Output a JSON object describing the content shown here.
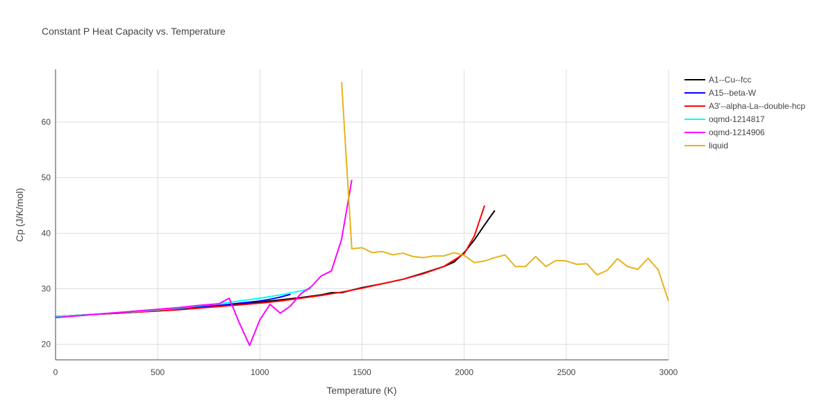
{
  "chart_data": {
    "type": "line",
    "title": "Constant P Heat Capacity vs. Temperature",
    "xlabel": "Temperature (K)",
    "ylabel": "Cp (J/K/mol)",
    "xlim": [
      0,
      3000
    ],
    "ylim": [
      17.2,
      69.5
    ],
    "xticks": [
      0,
      500,
      1000,
      1500,
      2000,
      2500,
      3000
    ],
    "xtick_labels": [
      "0",
      "500",
      "1000",
      "1500",
      "2000",
      "2500",
      "3000"
    ],
    "yticks": [
      20,
      30,
      40,
      50,
      60
    ],
    "ytick_labels": [
      "20",
      "30",
      "40",
      "50",
      "60"
    ],
    "grid": true,
    "legend_position": "top-right",
    "series": [
      {
        "name": "A1--Cu--fcc",
        "color": "#000000",
        "x": [
          0,
          100,
          200,
          300,
          400,
          500,
          600,
          700,
          800,
          900,
          1000,
          1100,
          1200,
          1300,
          1350,
          1400,
          1500,
          1600,
          1700,
          1800,
          1900,
          1950,
          2000,
          2050,
          2100,
          2150
        ],
        "y": [
          25.0,
          25.2,
          25.4,
          25.6,
          25.8,
          26.0,
          26.3,
          26.6,
          26.9,
          27.2,
          27.6,
          28.0,
          28.4,
          28.9,
          29.3,
          29.3,
          30.2,
          30.9,
          31.7,
          32.8,
          34.0,
          34.8,
          36.5,
          38.8,
          41.5,
          44.1
        ]
      },
      {
        "name": "A15--beta-W",
        "color": "#0000ff",
        "x": [
          0,
          100,
          200,
          300,
          400,
          500,
          600,
          700,
          800,
          900,
          1000,
          1050,
          1100,
          1150
        ],
        "y": [
          25.0,
          25.2,
          25.4,
          25.6,
          25.8,
          26.1,
          26.4,
          26.7,
          27.0,
          27.4,
          27.8,
          28.1,
          28.5,
          29.0
        ]
      },
      {
        "name": "A3'--alpha-La--double-hcp",
        "color": "#ff0000",
        "x": [
          0,
          100,
          200,
          300,
          400,
          500,
          600,
          700,
          800,
          900,
          1000,
          1100,
          1200,
          1300,
          1400,
          1500,
          1600,
          1700,
          1800,
          1900,
          2000,
          2050,
          2100
        ],
        "y": [
          25.0,
          25.2,
          25.4,
          25.6,
          25.8,
          26.0,
          26.2,
          26.5,
          26.8,
          27.1,
          27.4,
          27.8,
          28.3,
          28.8,
          29.4,
          30.1,
          30.9,
          31.7,
          32.7,
          34.0,
          36.3,
          39.5,
          45.0
        ]
      },
      {
        "name": "oqmd-1214817",
        "color": "#00ffff",
        "x": [
          0,
          100,
          200,
          300,
          400,
          500,
          600,
          700,
          800,
          900,
          1000,
          1100,
          1200,
          1250
        ],
        "y": [
          25.0,
          25.2,
          25.4,
          25.7,
          25.9,
          26.2,
          26.5,
          26.9,
          27.3,
          27.8,
          28.3,
          28.9,
          29.6,
          30.0
        ]
      },
      {
        "name": "oqmd-1214906",
        "color": "#ff00ff",
        "x": [
          0,
          100,
          200,
          300,
          400,
          500,
          600,
          700,
          800,
          850,
          900,
          950,
          1000,
          1050,
          1100,
          1150,
          1200,
          1250,
          1300,
          1350,
          1400,
          1450
        ],
        "y": [
          24.8,
          25.1,
          25.4,
          25.7,
          26.0,
          26.3,
          26.6,
          27.0,
          27.3,
          28.3,
          23.8,
          19.8,
          24.4,
          27.2,
          25.6,
          26.9,
          29.1,
          30.3,
          32.3,
          33.2,
          38.9,
          49.6
        ]
      },
      {
        "name": "liquid",
        "color": "#e6b31a",
        "x": [
          1400,
          1450,
          1500,
          1550,
          1600,
          1650,
          1700,
          1750,
          1800,
          1850,
          1900,
          1950,
          2000,
          2050,
          2100,
          2150,
          2200,
          2250,
          2300,
          2350,
          2400,
          2450,
          2500,
          2550,
          2600,
          2650,
          2700,
          2750,
          2800,
          2850,
          2900,
          2950,
          3000
        ],
        "y": [
          67.2,
          37.2,
          37.4,
          36.5,
          36.7,
          36.1,
          36.4,
          35.8,
          35.6,
          35.9,
          35.9,
          36.5,
          36.0,
          34.7,
          35.0,
          35.6,
          36.1,
          34.0,
          34.0,
          35.8,
          34.0,
          35.1,
          35.0,
          34.4,
          34.5,
          32.5,
          33.3,
          35.4,
          34.0,
          33.5,
          35.5,
          33.4,
          27.8
        ]
      }
    ]
  }
}
